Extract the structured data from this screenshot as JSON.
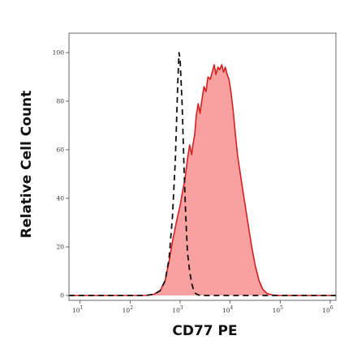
{
  "colors": {
    "fill": "#f9a0a0",
    "stroke": "#d42020",
    "control": "#111111",
    "frame": "#444444"
  },
  "chart_data": {
    "type": "area",
    "title": "",
    "xlabel": "CD77 PE",
    "ylabel": "Relative Cell Count",
    "xscale": "log",
    "xlim": [
      6,
      1300000
    ],
    "ylim": [
      -2,
      108
    ],
    "grid": false,
    "xticks": [
      {
        "value": 10,
        "base": "10",
        "exp": "1"
      },
      {
        "value": 100,
        "base": "10",
        "exp": "2"
      },
      {
        "value": 1000,
        "base": "10",
        "exp": "3"
      },
      {
        "value": 10000,
        "base": "10",
        "exp": "4"
      },
      {
        "value": 100000,
        "base": "10",
        "exp": "5"
      },
      {
        "value": 1000000,
        "base": "10",
        "exp": "6"
      }
    ],
    "yticks": [
      {
        "value": 0,
        "label": "0"
      },
      {
        "value": 20,
        "label": "20"
      },
      {
        "value": 40,
        "label": "40"
      },
      {
        "value": 60,
        "label": "60"
      },
      {
        "value": 80,
        "label": "80"
      },
      {
        "value": 100,
        "label": "100"
      }
    ],
    "series": [
      {
        "style": "filled-solid",
        "x": [
          6,
          100,
          200,
          300,
          400,
          500,
          600,
          700,
          800,
          900,
          1000,
          1100,
          1250,
          1400,
          1550,
          1700,
          1800,
          1950,
          2100,
          2300,
          2500,
          2700,
          3000,
          3300,
          3600,
          4000,
          4400,
          4800,
          5200,
          5700,
          6200,
          6800,
          7400,
          8000,
          8700,
          9500,
          10500,
          11500,
          12500,
          14000,
          16000,
          18000,
          20000,
          23000,
          27000,
          32000,
          38000,
          45000,
          55000,
          70000,
          100000,
          1300000
        ],
        "y": [
          0,
          0,
          0,
          0.5,
          2,
          6,
          14,
          22,
          28,
          33,
          37,
          42,
          48,
          56,
          62,
          58,
          62,
          66,
          74,
          79,
          75,
          80,
          86,
          84,
          90,
          89,
          92,
          95,
          91,
          94,
          93,
          95,
          92,
          94,
          91,
          89,
          83,
          76,
          68,
          58,
          50,
          43,
          37,
          29,
          20,
          12,
          6,
          2.5,
          0.8,
          0.2,
          0,
          0
        ]
      },
      {
        "style": "dashed",
        "x": [
          6,
          200,
          300,
          400,
          500,
          600,
          700,
          800,
          850,
          900,
          950,
          1000,
          1100,
          1200,
          1300,
          1400,
          1550,
          1700,
          1850,
          2000,
          2200,
          2500,
          3000,
          4000,
          1300000
        ],
        "y": [
          0,
          0,
          0.5,
          2,
          6,
          15,
          32,
          55,
          72,
          88,
          100,
          97,
          78,
          52,
          32,
          18,
          10,
          5,
          2.5,
          1,
          0.4,
          0,
          0,
          0,
          0
        ]
      }
    ]
  }
}
